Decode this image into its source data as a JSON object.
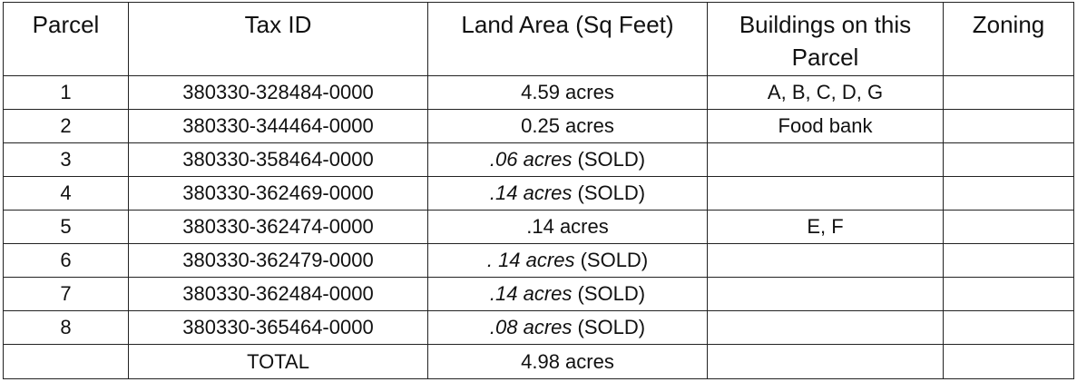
{
  "headers": [
    "Parcel",
    "Tax ID",
    "Land Area (Sq Feet)",
    "Buildings on this Parcel",
    "Zoning"
  ],
  "rows": [
    {
      "parcel": "1",
      "tax_id": "380330-328484-0000",
      "area_value": "4.59 acres",
      "area_note": "",
      "area_italic": false,
      "buildings": "A, B, C, D, G",
      "zoning": ""
    },
    {
      "parcel": "2",
      "tax_id": "380330-344464-0000",
      "area_value": "0.25 acres",
      "area_note": "",
      "area_italic": false,
      "buildings": "Food bank",
      "zoning": ""
    },
    {
      "parcel": "3",
      "tax_id": "380330-358464-0000",
      "area_value": ".06 acres",
      "area_note": "(SOLD)",
      "area_italic": true,
      "buildings": "",
      "zoning": ""
    },
    {
      "parcel": "4",
      "tax_id": "380330-362469-0000",
      "area_value": ".14 acres",
      "area_note": "(SOLD)",
      "area_italic": true,
      "buildings": "",
      "zoning": ""
    },
    {
      "parcel": "5",
      "tax_id": "380330-362474-0000",
      "area_value": ".14 acres",
      "area_note": "",
      "area_italic": false,
      "buildings": "E, F",
      "zoning": ""
    },
    {
      "parcel": "6",
      "tax_id": "380330-362479-0000",
      "area_value": ". 14 acres",
      "area_note": "(SOLD)",
      "area_italic": true,
      "buildings": "",
      "zoning": ""
    },
    {
      "parcel": "7",
      "tax_id": "380330-362484-0000",
      "area_value": ".14 acres",
      "area_note": "(SOLD)",
      "area_italic": true,
      "buildings": "",
      "zoning": ""
    },
    {
      "parcel": "8",
      "tax_id": "380330-365464-0000",
      "area_value": ".08 acres",
      "area_note": "(SOLD)",
      "area_italic": true,
      "buildings": "",
      "zoning": ""
    }
  ],
  "total": {
    "label": "TOTAL",
    "value": "4.98 acres"
  }
}
